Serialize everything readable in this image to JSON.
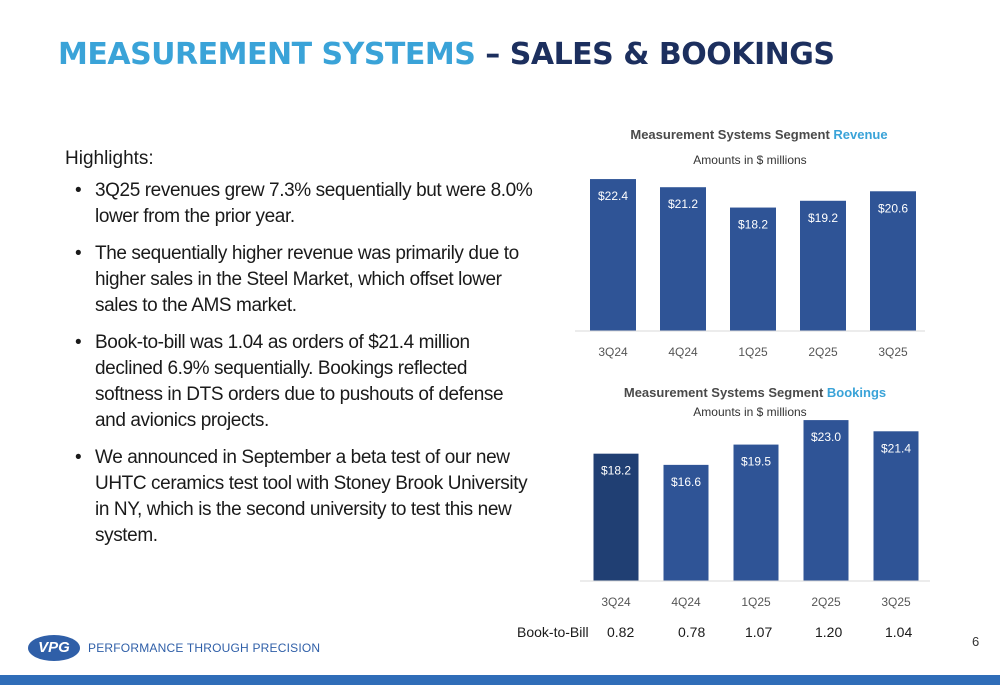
{
  "title": {
    "part1": "MEASUREMENT SYSTEMS",
    "part2": "– SALES & BOOKINGS"
  },
  "highlights": {
    "heading": "Highlights:",
    "bullets": [
      "3Q25 revenues grew 7.3% sequentially but were 8.0% lower from the prior year.",
      "The sequentially higher revenue was primarily due to higher sales in the Steel Market, which offset lower sales to the AMS market.",
      "Book-to-bill was 1.04 as orders of $21.4 million declined 6.9% sequentially. Bookings reflected softness in DTS orders due to pushouts of defense and avionics projects.",
      "We announced in September a beta test of our new UHTC ceramics test tool with Stoney Brook University in NY, which is the second university to test this new system."
    ]
  },
  "chart_data": [
    {
      "type": "bar",
      "title": "Measurement Systems Segment Revenue",
      "title_main": "Measurement Systems Segment ",
      "title_accent": "Revenue",
      "subtitle": "Amounts in $ millions",
      "categories": [
        "3Q24",
        "4Q24",
        "1Q25",
        "2Q25",
        "3Q25"
      ],
      "values": [
        22.4,
        21.2,
        18.2,
        19.2,
        20.6
      ],
      "labels": [
        "$22.4",
        "$21.2",
        "$18.2",
        "$19.2",
        "$20.6"
      ],
      "ylim": [
        0,
        23
      ],
      "bar_color": "#2f5496"
    },
    {
      "type": "bar",
      "title": "Measurement Systems Segment Bookings",
      "title_main": "Measurement Systems Segment ",
      "title_accent": "Bookings",
      "subtitle": "Amounts in $ millions",
      "categories": [
        "3Q24",
        "4Q24",
        "1Q25",
        "2Q25",
        "3Q25"
      ],
      "values": [
        18.2,
        16.6,
        19.5,
        23.0,
        21.4
      ],
      "labels": [
        "$18.2",
        "$16.6",
        "$19.5",
        "$23.0",
        "$21.4"
      ],
      "ylim": [
        0,
        23.3
      ],
      "bar_colors": [
        "#203f73",
        "#2f5496",
        "#2f5496",
        "#2f5496",
        "#2f5496"
      ]
    }
  ],
  "book_to_bill": {
    "label": "Book-to-Bill",
    "values": [
      "0.82",
      "0.78",
      "1.07",
      "1.20",
      "1.04"
    ]
  },
  "footer": {
    "logo_text": "VPG",
    "tagline": "PERFORMANCE THROUGH PRECISION",
    "page_number": "6"
  },
  "colors": {
    "title_accent": "#3aa3d8",
    "title_dark": "#1c2f5e",
    "bar": "#2f5496",
    "footer_bar": "#2f6db8"
  }
}
